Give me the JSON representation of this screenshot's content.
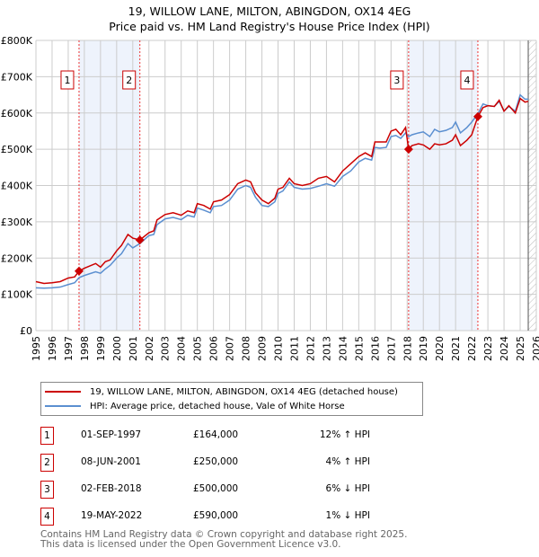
{
  "title_line1": "19, WILLOW LANE, MILTON, ABINGDON, OX14 4EG",
  "title_line2": "Price paid vs. HM Land Registry's House Price Index (HPI)",
  "chart_data": {
    "type": "line",
    "ylim": [
      0,
      800000
    ],
    "xlim": [
      1995,
      2026
    ],
    "yticks": [
      {
        "v": 0,
        "label": "£0"
      },
      {
        "v": 100000,
        "label": "£100K"
      },
      {
        "v": 200000,
        "label": "£200K"
      },
      {
        "v": 300000,
        "label": "£300K"
      },
      {
        "v": 400000,
        "label": "£400K"
      },
      {
        "v": 500000,
        "label": "£500K"
      },
      {
        "v": 600000,
        "label": "£600K"
      },
      {
        "v": 700000,
        "label": "£700K"
      },
      {
        "v": 800000,
        "label": "£800K"
      }
    ],
    "xticks": [
      "1995",
      "1996",
      "1997",
      "1998",
      "1999",
      "2000",
      "2001",
      "2002",
      "2003",
      "2004",
      "2005",
      "2006",
      "2007",
      "2008",
      "2009",
      "2010",
      "2011",
      "2012",
      "2013",
      "2014",
      "2015",
      "2016",
      "2017",
      "2018",
      "2019",
      "2020",
      "2021",
      "2022",
      "2023",
      "2024",
      "2025",
      "2026"
    ],
    "series": [
      {
        "name": "19, WILLOW LANE, MILTON, ABINGDON, OX14 4EG (detached house)",
        "color": "#cc0000",
        "x": [
          1995,
          1995.5,
          1996,
          1996.5,
          1997,
          1997.4,
          1997.67,
          1998,
          1998.7,
          1999,
          1999.3,
          1999.6,
          2000,
          2000.3,
          2000.7,
          2001,
          2001.44,
          2002,
          2002.3,
          2002.5,
          2003,
          2003.5,
          2004,
          2004.4,
          2004.8,
          2005,
          2005.4,
          2005.8,
          2006,
          2006.5,
          2007,
          2007.5,
          2008,
          2008.3,
          2008.6,
          2009,
          2009.4,
          2009.8,
          2010,
          2010.3,
          2010.7,
          2011,
          2011.5,
          2012,
          2012.5,
          2013,
          2013.5,
          2014,
          2014.5,
          2015,
          2015.4,
          2015.8,
          2016,
          2016.3,
          2016.7,
          2017,
          2017.3,
          2017.6,
          2017.9,
          2018.09,
          2018.3,
          2018.7,
          2019,
          2019.4,
          2019.7,
          2020,
          2020.4,
          2020.8,
          2021,
          2021.3,
          2021.7,
          2022,
          2022.38,
          2022.7,
          2023,
          2023.4,
          2023.7,
          2024,
          2024.3,
          2024.7,
          2025,
          2025.3,
          2025.5
        ],
        "y": [
          135,
          130,
          132,
          135,
          145,
          148,
          164,
          172,
          185,
          175,
          190,
          195,
          220,
          235,
          265,
          255,
          250,
          270,
          275,
          305,
          320,
          325,
          318,
          330,
          325,
          350,
          345,
          335,
          355,
          360,
          375,
          405,
          415,
          410,
          380,
          360,
          350,
          365,
          390,
          395,
          420,
          405,
          400,
          405,
          420,
          425,
          410,
          440,
          460,
          480,
          490,
          480,
          520,
          520,
          520,
          550,
          555,
          540,
          560,
          500,
          510,
          515,
          512,
          500,
          515,
          512,
          515,
          525,
          540,
          510,
          525,
          540,
          590,
          615,
          620,
          618,
          635,
          605,
          620,
          600,
          640,
          630,
          632
        ]
      },
      {
        "name": "HPI: Average price, detached house, Vale of White Horse",
        "color": "#5b8fd0",
        "x": [
          1995,
          1995.5,
          1996,
          1996.5,
          1997,
          1997.4,
          1997.67,
          1998,
          1998.7,
          1999,
          1999.3,
          1999.6,
          2000,
          2000.3,
          2000.7,
          2001,
          2001.44,
          2002,
          2002.3,
          2002.5,
          2003,
          2003.5,
          2004,
          2004.4,
          2004.8,
          2005,
          2005.4,
          2005.8,
          2006,
          2006.5,
          2007,
          2007.5,
          2008,
          2008.3,
          2008.6,
          2009,
          2009.4,
          2009.8,
          2010,
          2010.3,
          2010.7,
          2011,
          2011.5,
          2012,
          2012.5,
          2013,
          2013.5,
          2014,
          2014.5,
          2015,
          2015.4,
          2015.8,
          2016,
          2016.3,
          2016.7,
          2017,
          2017.3,
          2017.6,
          2017.9,
          2018.09,
          2018.3,
          2018.7,
          2019,
          2019.4,
          2019.7,
          2020,
          2020.4,
          2020.8,
          2021,
          2021.3,
          2021.7,
          2022,
          2022.38,
          2022.7,
          2023,
          2023.4,
          2023.7,
          2024,
          2024.3,
          2024.7,
          2025,
          2025.3,
          2025.5
        ],
        "y": [
          118,
          117,
          118,
          120,
          127,
          132,
          146,
          152,
          162,
          158,
          170,
          180,
          200,
          212,
          240,
          228,
          240,
          262,
          265,
          292,
          308,
          312,
          306,
          318,
          313,
          338,
          332,
          325,
          342,
          345,
          360,
          390,
          400,
          395,
          368,
          345,
          342,
          355,
          378,
          385,
          410,
          395,
          390,
          392,
          398,
          405,
          398,
          425,
          440,
          465,
          475,
          470,
          505,
          503,
          505,
          535,
          538,
          530,
          545,
          535,
          540,
          545,
          548,
          535,
          555,
          548,
          552,
          560,
          575,
          545,
          560,
          575,
          598,
          625,
          620,
          618,
          632,
          605,
          618,
          605,
          650,
          638,
          638
        ]
      }
    ],
    "sales": [
      {
        "n": "1",
        "date": "01-SEP-1997",
        "price": "£164,000",
        "hpi": "12% ↑ HPI",
        "x": 1997.67,
        "y": 164
      },
      {
        "n": "2",
        "date": "08-JUN-2001",
        "price": "£250,000",
        "hpi": "4% ↑ HPI",
        "x": 2001.44,
        "y": 250
      },
      {
        "n": "3",
        "date": "02-FEB-2018",
        "price": "£500,000",
        "hpi": "6% ↓ HPI",
        "x": 2018.09,
        "y": 500
      },
      {
        "n": "4",
        "date": "19-MAY-2022",
        "price": "£590,000",
        "hpi": "1% ↓ HPI",
        "x": 2022.38,
        "y": 590
      }
    ],
    "shaded_ranges": [
      [
        1997.67,
        2001.44
      ],
      [
        2018.09,
        2022.38
      ]
    ],
    "forecast_start": 2025.5
  },
  "footer_line1": "Contains HM Land Registry data © Crown copyright and database right 2025.",
  "footer_line2": "This data is licensed under the Open Government Licence v3.0."
}
